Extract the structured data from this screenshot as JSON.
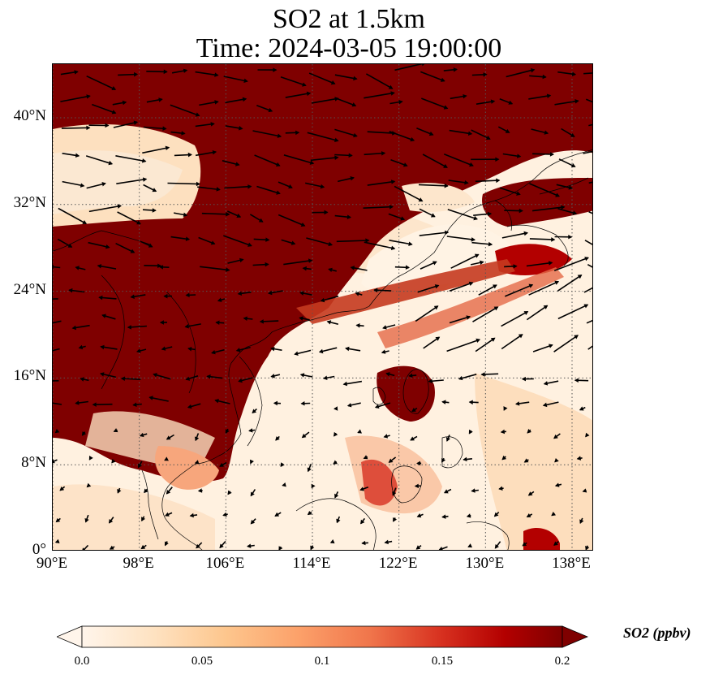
{
  "title_line1": "SO2 at 1.5km",
  "title_line2": "Time: 2024-03-05 19:00:00",
  "map": {
    "lon_range": [
      90,
      140
    ],
    "lat_range": [
      0,
      45
    ],
    "lat_ticks": [
      {
        "value": 40,
        "label": "40°N"
      },
      {
        "value": 32,
        "label": "32°N"
      },
      {
        "value": 24,
        "label": "24°N"
      },
      {
        "value": 16,
        "label": "16°N"
      },
      {
        "value": 8,
        "label": "8°N"
      },
      {
        "value": 0,
        "label": "0°"
      }
    ],
    "lon_ticks": [
      {
        "value": 90,
        "label": "90°E"
      },
      {
        "value": 98,
        "label": "98°E"
      },
      {
        "value": 106,
        "label": "106°E"
      },
      {
        "value": 114,
        "label": "114°E"
      },
      {
        "value": 122,
        "label": "122°E"
      },
      {
        "value": 130,
        "label": "130°E"
      },
      {
        "value": 138,
        "label": "138°E"
      }
    ],
    "gridlines": "dotted"
  },
  "colorbar": {
    "label": "SO2 (ppbv)",
    "ticks": [
      "0.0",
      "0.05",
      "0.1",
      "0.15",
      "0.2"
    ],
    "colors": [
      "#fff5eb",
      "#fdd49e",
      "#fdbb84",
      "#fc8d59",
      "#ef6548",
      "#d7301f",
      "#b30000",
      "#7f0000"
    ],
    "extend": "both"
  }
}
